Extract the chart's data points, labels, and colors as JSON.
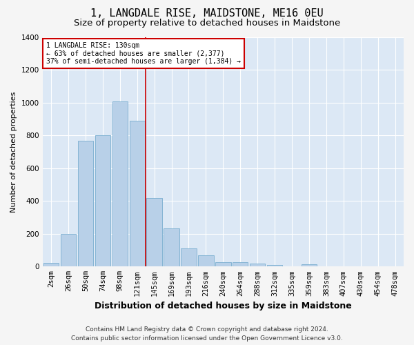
{
  "title": "1, LANGDALE RISE, MAIDSTONE, ME16 0EU",
  "subtitle": "Size of property relative to detached houses in Maidstone",
  "xlabel": "Distribution of detached houses by size in Maidstone",
  "ylabel": "Number of detached properties",
  "categories": [
    "2sqm",
    "26sqm",
    "50sqm",
    "74sqm",
    "98sqm",
    "121sqm",
    "145sqm",
    "169sqm",
    "193sqm",
    "216sqm",
    "240sqm",
    "264sqm",
    "288sqm",
    "312sqm",
    "335sqm",
    "359sqm",
    "383sqm",
    "407sqm",
    "430sqm",
    "454sqm",
    "478sqm"
  ],
  "values": [
    22,
    200,
    770,
    800,
    1010,
    890,
    420,
    235,
    110,
    70,
    27,
    25,
    20,
    10,
    0,
    12,
    0,
    0,
    0,
    0,
    0
  ],
  "bar_color": "#b8d0e8",
  "bar_edge_color": "#7aaed0",
  "background_color": "#dce8f5",
  "grid_color": "#ffffff",
  "vline_color": "#cc0000",
  "annotation_text": "1 LANGDALE RISE: 130sqm\n← 63% of detached houses are smaller (2,377)\n37% of semi-detached houses are larger (1,384) →",
  "annotation_box_color": "#cc0000",
  "annotation_box_fill": "#ffffff",
  "ylim": [
    0,
    1400
  ],
  "yticks": [
    0,
    200,
    400,
    600,
    800,
    1000,
    1200,
    1400
  ],
  "footer_line1": "Contains HM Land Registry data © Crown copyright and database right 2024.",
  "footer_line2": "Contains public sector information licensed under the Open Government Licence v3.0.",
  "title_fontsize": 11,
  "subtitle_fontsize": 9.5,
  "xlabel_fontsize": 9,
  "ylabel_fontsize": 8,
  "tick_fontsize": 7.5,
  "footer_fontsize": 6.5,
  "fig_bg": "#f5f5f5"
}
